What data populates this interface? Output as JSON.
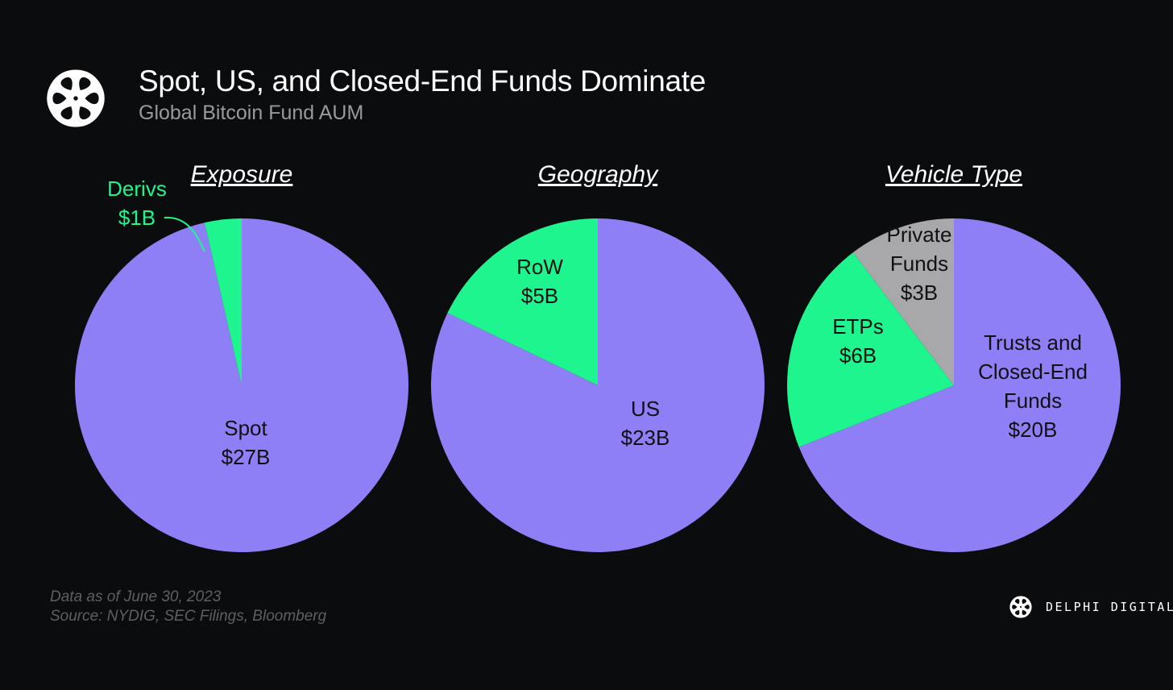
{
  "header": {
    "title": "Spot, US, and Closed-End Funds Dominate",
    "subtitle": "Global Bitcoin Fund AUM",
    "logo_icon": "knot-flower-logo-icon"
  },
  "colors": {
    "background": "#0b0c0e",
    "purple": "#8f7ff7",
    "green": "#1ff58e",
    "gray": "#a8a8ab"
  },
  "chart_data": [
    {
      "type": "pie",
      "title": "Exposure",
      "slices": [
        {
          "label": "Spot",
          "value_label": "$27B",
          "value": 27,
          "color": "#8f7ff7"
        },
        {
          "label": "Derivs",
          "value_label": "$1B",
          "value": 1,
          "color": "#1ff58e",
          "label_outside": true
        }
      ]
    },
    {
      "type": "pie",
      "title": "Geography",
      "slices": [
        {
          "label": "US",
          "value_label": "$23B",
          "value": 23,
          "color": "#8f7ff7"
        },
        {
          "label": "RoW",
          "value_label": "$5B",
          "value": 5,
          "color": "#1ff58e"
        }
      ]
    },
    {
      "type": "pie",
      "title": "Vehicle Type",
      "slices": [
        {
          "label": "Trusts and Closed-End Funds",
          "value_label": "$20B",
          "value": 20,
          "color": "#8f7ff7"
        },
        {
          "label": "ETPs",
          "value_label": "$6B",
          "value": 6,
          "color": "#1ff58e"
        },
        {
          "label": "Private Funds",
          "value_label": "$3B",
          "value": 3,
          "color": "#a8a8ab"
        }
      ]
    }
  ],
  "footer": {
    "date_note": "Data as of June 30, 2023",
    "source_note": "Source: NYDIG, SEC Filings,  Bloomberg",
    "brand_name": "DELPHI DIGITAL",
    "brand_icon": "delphi-logo-icon"
  }
}
